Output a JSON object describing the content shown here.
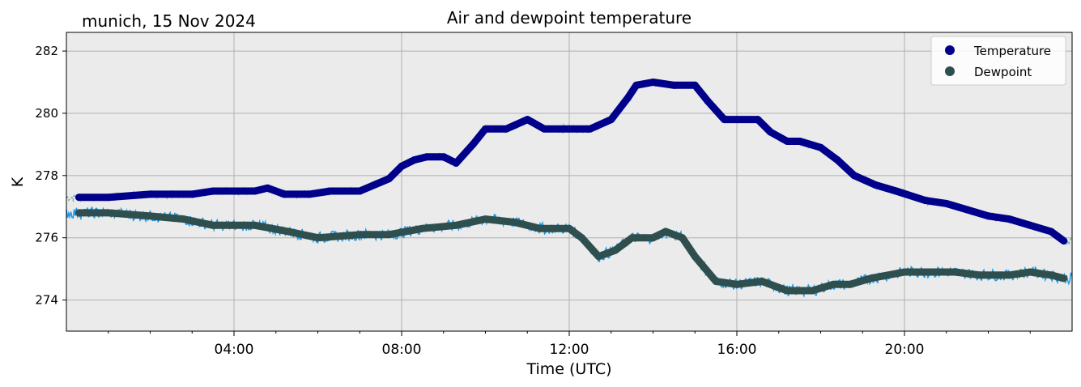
{
  "chart_data": {
    "type": "line",
    "title": "Air and dewpoint temperature",
    "subtitle": "munich, 15 Nov 2024",
    "xlabel": "Time (UTC)",
    "ylabel": "K",
    "xlim": [
      0,
      24
    ],
    "ylim": [
      273,
      282.6
    ],
    "x_ticks": [
      {
        "x": 4,
        "label": "04:00"
      },
      {
        "x": 8,
        "label": "08:00"
      },
      {
        "x": 12,
        "label": "12:00"
      },
      {
        "x": 16,
        "label": "16:00"
      },
      {
        "x": 20,
        "label": "20:00"
      }
    ],
    "y_ticks": [
      {
        "y": 274,
        "label": "274"
      },
      {
        "y": 276,
        "label": "276"
      },
      {
        "y": 278,
        "label": "278"
      },
      {
        "y": 280,
        "label": "280"
      },
      {
        "y": 282,
        "label": "282"
      }
    ],
    "grid": true,
    "legend_position": "top-right",
    "series": [
      {
        "name": "Temperature",
        "marker_color": "#00008b",
        "raw_color": "#6fa8a8",
        "x": [
          0.3,
          1.0,
          2.0,
          3.0,
          3.5,
          4.0,
          4.5,
          4.8,
          5.2,
          5.8,
          6.3,
          7.0,
          7.7,
          8.0,
          8.3,
          8.6,
          9.0,
          9.3,
          9.7,
          10.0,
          10.5,
          11.0,
          11.4,
          12.0,
          12.5,
          13.0,
          13.4,
          13.6,
          14.0,
          14.5,
          15.0,
          15.3,
          15.7,
          16.0,
          16.5,
          16.8,
          17.2,
          17.5,
          18.0,
          18.4,
          18.8,
          19.3,
          19.8,
          20.5,
          21.0,
          21.5,
          22.0,
          22.5,
          23.0,
          23.5,
          23.8
        ],
        "y": [
          277.3,
          277.3,
          277.4,
          277.4,
          277.5,
          277.5,
          277.5,
          277.6,
          277.4,
          277.4,
          277.5,
          277.5,
          277.9,
          278.3,
          278.5,
          278.6,
          278.6,
          278.4,
          279.0,
          279.5,
          279.5,
          279.8,
          279.5,
          279.5,
          279.5,
          279.8,
          280.5,
          280.9,
          281.0,
          280.9,
          280.9,
          280.4,
          279.8,
          279.8,
          279.8,
          279.4,
          279.1,
          279.1,
          278.9,
          278.5,
          278.0,
          277.7,
          277.5,
          277.2,
          277.1,
          276.9,
          276.7,
          276.6,
          276.4,
          276.2,
          275.9
        ]
      },
      {
        "name": "Dewpoint",
        "marker_color": "#2f4f4f",
        "raw_color": "#1e9be8",
        "x": [
          0.3,
          1.0,
          2.0,
          2.8,
          3.5,
          4.5,
          5.3,
          6.0,
          7.0,
          7.7,
          8.5,
          9.3,
          10.0,
          10.7,
          11.3,
          12.0,
          12.3,
          12.7,
          13.1,
          13.5,
          14.0,
          14.3,
          14.7,
          15.0,
          15.5,
          16.0,
          16.6,
          17.2,
          17.8,
          18.3,
          18.7,
          19.2,
          20.0,
          20.6,
          21.2,
          21.8,
          22.5,
          23.0,
          23.5,
          23.8
        ],
        "y": [
          276.8,
          276.8,
          276.7,
          276.6,
          276.4,
          276.4,
          276.2,
          276.0,
          276.1,
          276.1,
          276.3,
          276.4,
          276.6,
          276.5,
          276.3,
          276.3,
          276.0,
          275.4,
          275.6,
          276.0,
          276.0,
          276.2,
          276.0,
          275.4,
          274.6,
          274.5,
          274.6,
          274.3,
          274.3,
          274.5,
          274.5,
          274.7,
          274.9,
          274.9,
          274.9,
          274.8,
          274.8,
          274.9,
          274.8,
          274.7
        ]
      }
    ]
  }
}
